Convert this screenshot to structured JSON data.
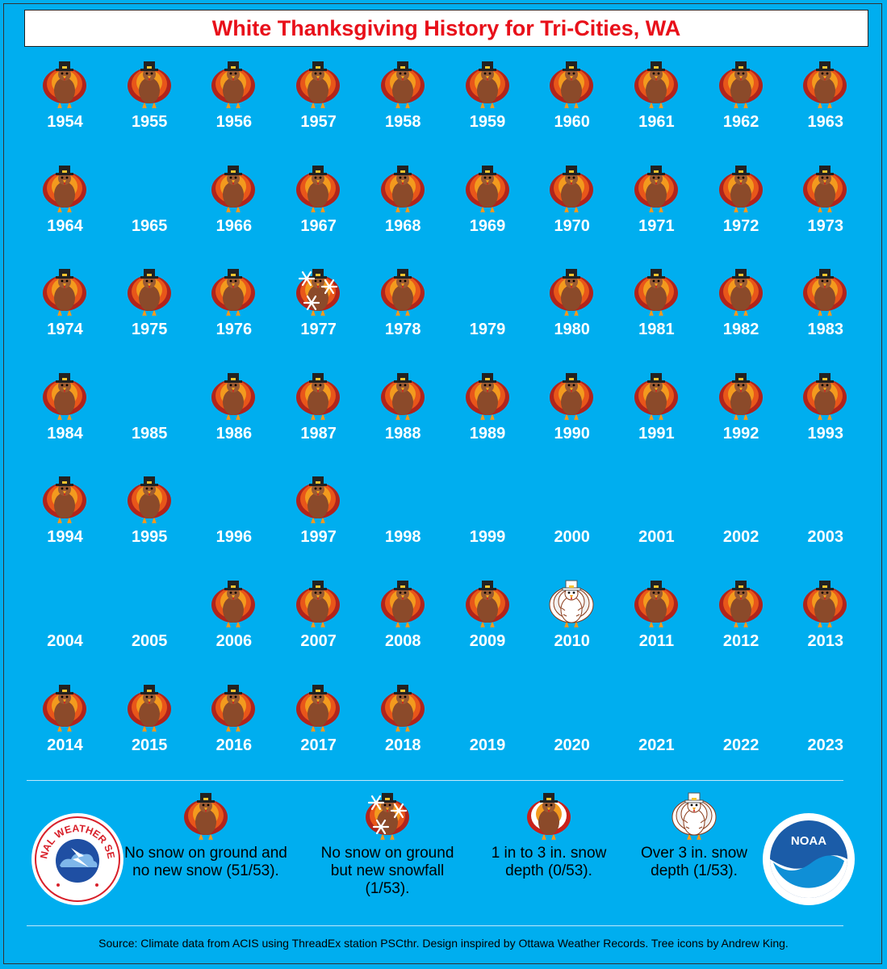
{
  "title": "White Thanksgiving History for Tri-Cities, WA",
  "colors": {
    "background": "#00aeef",
    "title": "#e8101a"
  },
  "rows": [
    [
      {
        "year": "1954",
        "icon": "turkey"
      },
      {
        "year": "1955",
        "icon": "turkey"
      },
      {
        "year": "1956",
        "icon": "turkey"
      },
      {
        "year": "1957",
        "icon": "turkey"
      },
      {
        "year": "1958",
        "icon": "turkey"
      },
      {
        "year": "1959",
        "icon": "turkey"
      },
      {
        "year": "1960",
        "icon": "turkey"
      },
      {
        "year": "1961",
        "icon": "turkey"
      },
      {
        "year": "1962",
        "icon": "turkey"
      },
      {
        "year": "1963",
        "icon": "turkey"
      }
    ],
    [
      {
        "year": "1964",
        "icon": "turkey"
      },
      {
        "year": "1965",
        "icon": ""
      },
      {
        "year": "1966",
        "icon": "turkey"
      },
      {
        "year": "1967",
        "icon": "turkey"
      },
      {
        "year": "1968",
        "icon": "turkey"
      },
      {
        "year": "1969",
        "icon": "turkey"
      },
      {
        "year": "1970",
        "icon": "turkey"
      },
      {
        "year": "1971",
        "icon": "turkey"
      },
      {
        "year": "1972",
        "icon": "turkey"
      },
      {
        "year": "1973",
        "icon": "turkey"
      }
    ],
    [
      {
        "year": "1974",
        "icon": "turkey"
      },
      {
        "year": "1975",
        "icon": "turkey"
      },
      {
        "year": "1976",
        "icon": "turkey"
      },
      {
        "year": "1977",
        "icon": "turkey-snowflakes"
      },
      {
        "year": "1978",
        "icon": "turkey"
      },
      {
        "year": "1979",
        "icon": ""
      },
      {
        "year": "1980",
        "icon": "turkey"
      },
      {
        "year": "1981",
        "icon": "turkey"
      },
      {
        "year": "1982",
        "icon": "turkey"
      },
      {
        "year": "1983",
        "icon": "turkey"
      }
    ],
    [
      {
        "year": "1984",
        "icon": "turkey"
      },
      {
        "year": "1985",
        "icon": ""
      },
      {
        "year": "1986",
        "icon": "turkey"
      },
      {
        "year": "1987",
        "icon": "turkey"
      },
      {
        "year": "1988",
        "icon": "turkey"
      },
      {
        "year": "1989",
        "icon": "turkey"
      },
      {
        "year": "1990",
        "icon": "turkey"
      },
      {
        "year": "1991",
        "icon": "turkey"
      },
      {
        "year": "1992",
        "icon": "turkey"
      },
      {
        "year": "1993",
        "icon": "turkey"
      }
    ],
    [
      {
        "year": "1994",
        "icon": "turkey"
      },
      {
        "year": "1995",
        "icon": "turkey"
      },
      {
        "year": "1996",
        "icon": ""
      },
      {
        "year": "1997",
        "icon": "turkey"
      },
      {
        "year": "1998",
        "icon": ""
      },
      {
        "year": "1999",
        "icon": ""
      },
      {
        "year": "2000",
        "icon": ""
      },
      {
        "year": "2001",
        "icon": ""
      },
      {
        "year": "2002",
        "icon": ""
      },
      {
        "year": "2003",
        "icon": ""
      }
    ],
    [
      {
        "year": "2004",
        "icon": ""
      },
      {
        "year": "2005",
        "icon": ""
      },
      {
        "year": "2006",
        "icon": "turkey"
      },
      {
        "year": "2007",
        "icon": "turkey"
      },
      {
        "year": "2008",
        "icon": "turkey"
      },
      {
        "year": "2009",
        "icon": "turkey"
      },
      {
        "year": "2010",
        "icon": "turkey-white"
      },
      {
        "year": "2011",
        "icon": "turkey"
      },
      {
        "year": "2012",
        "icon": "turkey"
      },
      {
        "year": "2013",
        "icon": "turkey"
      }
    ],
    [
      {
        "year": "2014",
        "icon": "turkey"
      },
      {
        "year": "2015",
        "icon": "turkey"
      },
      {
        "year": "2016",
        "icon": "turkey"
      },
      {
        "year": "2017",
        "icon": "turkey"
      },
      {
        "year": "2018",
        "icon": "turkey"
      },
      {
        "year": "2019",
        "icon": ""
      },
      {
        "year": "2020",
        "icon": ""
      },
      {
        "year": "2021",
        "icon": ""
      },
      {
        "year": "2022",
        "icon": ""
      },
      {
        "year": "2023",
        "icon": ""
      }
    ]
  ],
  "legend": [
    {
      "icon": "turkey",
      "text": "No snow on ground and no new snow (51/53)."
    },
    {
      "icon": "turkey-snowflakes",
      "text": "No snow on ground but new snowfall (1/53)."
    },
    {
      "icon": "turkey-light-snow",
      "text": "1 in to 3 in. snow depth (0/53)."
    },
    {
      "icon": "turkey-white",
      "text": "Over 3 in. snow depth (1/53)."
    }
  ],
  "logos": {
    "left": {
      "icon": "nws-logo-icon",
      "text": "NATIONAL WEATHER SERVICE"
    },
    "right": {
      "icon": "noaa-logo-icon",
      "text": "NOAA"
    }
  },
  "source": "Source: Climate data from ACIS using ThreadEx station PSCthr. Design inspired by Ottawa Weather Records. Tree icons by Andrew King."
}
